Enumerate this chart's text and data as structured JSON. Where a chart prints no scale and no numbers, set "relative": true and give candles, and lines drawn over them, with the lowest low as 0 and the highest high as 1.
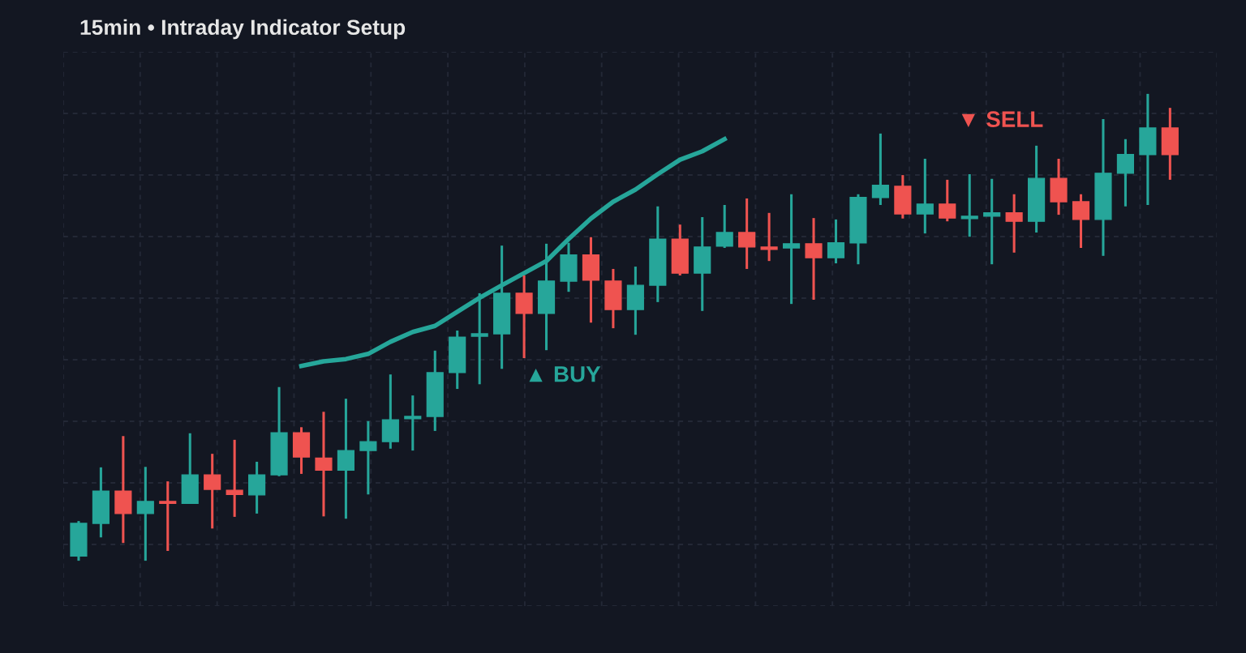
{
  "chart_data": {
    "type": "candlestick",
    "title": "15min • Intraday Indicator Setup",
    "relative": true,
    "grid": true,
    "legend": false,
    "categories": [
      null,
      null,
      null,
      null,
      null,
      null,
      null,
      null,
      null,
      null,
      null,
      null,
      null,
      null,
      null,
      null,
      null,
      null,
      null,
      null,
      null,
      null,
      null,
      null,
      null,
      null,
      null,
      null,
      null,
      null,
      null,
      null,
      null,
      null,
      null,
      null,
      null,
      null,
      null,
      null,
      null,
      null,
      null,
      null,
      null,
      null,
      null,
      null,
      null,
      null
    ],
    "ohlc": [
      [
        0.01,
        0.085,
        0,
        0.08
      ],
      [
        0.08,
        0.2,
        0.05,
        0.149
      ],
      [
        0.149,
        0.267,
        0.038,
        0.101
      ],
      [
        0.101,
        0.201,
        0,
        0.127
      ],
      [
        0.127,
        0.17,
        0.021,
        0.123
      ],
      [
        0.123,
        0.273,
        0.122,
        0.184
      ],
      [
        0.184,
        0.229,
        0.069,
        0.153
      ],
      [
        0.151,
        0.259,
        0.094,
        0.142
      ],
      [
        0.141,
        0.212,
        0.101,
        0.184
      ],
      [
        0.184,
        0.372,
        0.181,
        0.274
      ],
      [
        0.274,
        0.286,
        0.186,
        0.222
      ],
      [
        0.22,
        0.319,
        0.095,
        0.194
      ],
      [
        0.194,
        0.347,
        0.09,
        0.236
      ],
      [
        0.236,
        0.299,
        0.142,
        0.255
      ],
      [
        0.255,
        0.399,
        0.24,
        0.302
      ],
      [
        0.304,
        0.354,
        0.236,
        0.309
      ],
      [
        0.309,
        0.45,
        0.278,
        0.403
      ],
      [
        0.403,
        0.493,
        0.368,
        0.479
      ],
      [
        0.481,
        0.573,
        0.378,
        0.486
      ],
      [
        0.486,
        0.675,
        0.411,
        0.573
      ],
      [
        0.573,
        0.611,
        0.434,
        0.53
      ],
      [
        0.53,
        0.679,
        0.451,
        0.599
      ],
      [
        0.599,
        0.681,
        0.576,
        0.655
      ],
      [
        0.655,
        0.693,
        0.51,
        0.601
      ],
      [
        0.599,
        0.625,
        0.498,
        0.538
      ],
      [
        0.538,
        0.63,
        0.484,
        0.59
      ],
      [
        0.59,
        0.759,
        0.554,
        0.689
      ],
      [
        0.689,
        0.72,
        0.611,
        0.616
      ],
      [
        0.616,
        0.736,
        0.535,
        0.672
      ],
      [
        0.674,
        0.762,
        0.67,
        0.703
      ],
      [
        0.703,
        0.776,
        0.625,
        0.672
      ],
      [
        0.672,
        0.745,
        0.642,
        0.667
      ],
      [
        0.67,
        0.785,
        0.55,
        0.679
      ],
      [
        0.679,
        0.734,
        0.559,
        0.649
      ],
      [
        0.649,
        0.731,
        0.637,
        0.681
      ],
      [
        0.681,
        0.785,
        0.635,
        0.778
      ],
      [
        0.778,
        0.915,
        0.762,
        0.804
      ],
      [
        0.802,
        0.826,
        0.733,
        0.743
      ],
      [
        0.743,
        0.861,
        0.701,
        0.764
      ],
      [
        0.764,
        0.816,
        0.727,
        0.734
      ],
      [
        0.733,
        0.828,
        0.694,
        0.738
      ],
      [
        0.738,
        0.818,
        0.635,
        0.745
      ],
      [
        0.745,
        0.785,
        0.66,
        0.727
      ],
      [
        0.727,
        0.889,
        0.703,
        0.819
      ],
      [
        0.819,
        0.861,
        0.741,
        0.769
      ],
      [
        0.769,
        0.785,
        0.67,
        0.731
      ],
      [
        0.731,
        0.946,
        0.653,
        0.83
      ],
      [
        0.83,
        0.903,
        0.759,
        0.87
      ],
      [
        0.87,
        1.0,
        0.762,
        0.927
      ],
      [
        0.927,
        0.97,
        0.816,
        0.87
      ]
    ],
    "series": [
      {
        "type": "line",
        "color": "#26a69a",
        "line_style": "solid",
        "marker": "none",
        "values": [
          null,
          null,
          null,
          null,
          null,
          null,
          null,
          null,
          null,
          null,
          0.417,
          0.427,
          0.432,
          0.443,
          0.469,
          0.49,
          0.503,
          0.533,
          0.563,
          0.59,
          0.616,
          0.642,
          0.689,
          0.733,
          0.769,
          0.795,
          0.828,
          0.859,
          0.877,
          0.903,
          null,
          null,
          null,
          null,
          null,
          null,
          null,
          null,
          null,
          null,
          null,
          null,
          null,
          null,
          null,
          null,
          null,
          null,
          null,
          null
        ]
      }
    ],
    "annotations": [
      "▲ BUY",
      "▼ SELL"
    ]
  }
}
